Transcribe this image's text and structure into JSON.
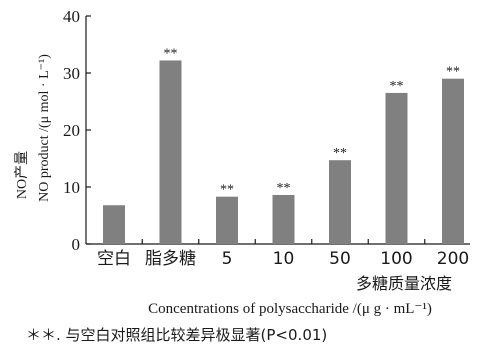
{
  "chart_data": {
    "type": "bar",
    "categories": [
      "空白",
      "脂多糖",
      "5",
      "10",
      "50",
      "100",
      "200"
    ],
    "values": [
      6.8,
      32.2,
      8.3,
      8.6,
      14.7,
      26.5,
      29.0
    ],
    "significance": [
      "",
      "**",
      "**",
      "**",
      "**",
      "**",
      "**"
    ],
    "ylim": [
      0,
      40
    ],
    "yticks": [
      0,
      10,
      20,
      30,
      40
    ],
    "ylabel_cn": "NO产量",
    "ylabel_en": "NO product /(μ mol · L⁻¹)",
    "xlabel_cn": "多糖质量浓度",
    "xlabel_en": "Concentrations of polysaccharide /(μ g · mL⁻¹)",
    "bar_color": "#808080"
  },
  "footnote": "＊＊. 与空白对照组比较差异极显著(P<0.01)"
}
